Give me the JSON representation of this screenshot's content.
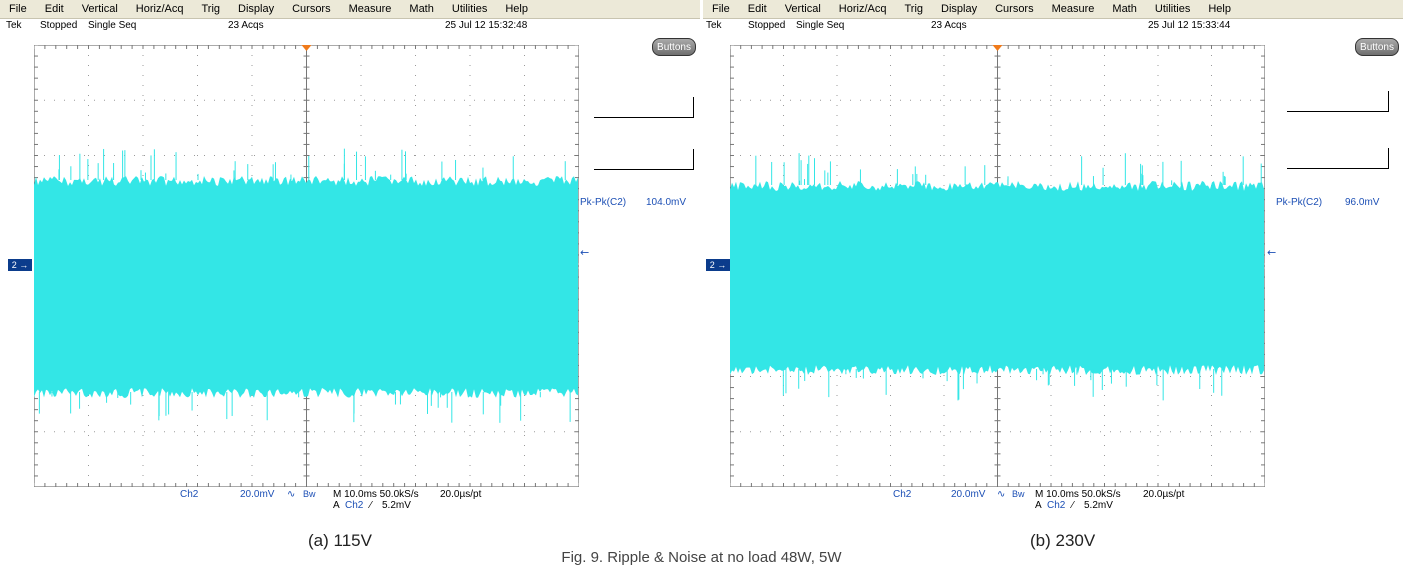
{
  "menu": [
    "File",
    "Edit",
    "Vertical",
    "Horiz/Acq",
    "Trig",
    "Display",
    "Cursors",
    "Measure",
    "Math",
    "Utilities",
    "Help"
  ],
  "trace_color": "#33e6e6",
  "panels": [
    {
      "brand": "Tek",
      "acq_state": "Stopped",
      "acq_mode": "Single Seq",
      "acq_count": "23 Acqs",
      "datetime": "25 Jul 12 15:32:48",
      "buttons_label": "Buttons",
      "channel_marker": "2",
      "measurement_label": "Pk-Pk(C2)",
      "measurement_value": "104.0mV",
      "channel": "Ch2",
      "vertical_scale": "20.0mV",
      "bw_label": "Bw",
      "timebase": "M 10.0ms 50.0kS/s",
      "resolution": "20.0µs/pt",
      "trigger_prefix": "A",
      "trigger_channel": "Ch2",
      "trigger_slope": "⁄",
      "trigger_level": "5.2mV",
      "caption": "(a) 115V"
    },
    {
      "brand": "Tek",
      "acq_state": "Stopped",
      "acq_mode": "Single Seq",
      "acq_count": "23 Acqs",
      "datetime": "25 Jul 12 15:33:44",
      "buttons_label": "Buttons",
      "channel_marker": "2",
      "measurement_label": "Pk-Pk(C2)",
      "measurement_value": "96.0mV",
      "channel": "Ch2",
      "vertical_scale": "20.0mV",
      "bw_label": "Bw",
      "timebase": "M 10.0ms 50.0kS/s",
      "resolution": "20.0µs/pt",
      "trigger_prefix": "A",
      "trigger_channel": "Ch2",
      "trigger_slope": "⁄",
      "trigger_level": "5.2mV",
      "caption": "(b) 230V"
    }
  ],
  "figure_caption": "Fig. 9. Ripple & Noise at no load 48W, 5W"
}
